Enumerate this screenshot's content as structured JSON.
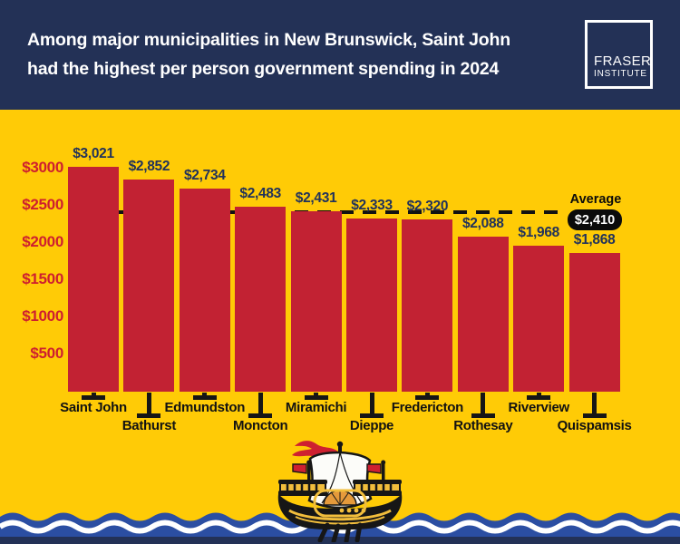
{
  "header": {
    "title_line1": "Among major municipalities in New Brunswick, Saint John",
    "title_line2": "had the highest per person government spending in 2024",
    "logo": {
      "line1": "FRASER",
      "line2": "INSTITUTE"
    }
  },
  "chart_data": {
    "type": "bar",
    "title": "Among major municipalities in New Brunswick, Saint John had the highest per person government spending in 2024",
    "categories": [
      "Saint John",
      "Bathurst",
      "Edmundston",
      "Moncton",
      "Miramichi",
      "Dieppe",
      "Fredericton",
      "Rothesay",
      "Riverview",
      "Quispamsis"
    ],
    "values": [
      3021,
      2852,
      2734,
      2483,
      2431,
      2333,
      2320,
      2088,
      1968,
      1868
    ],
    "value_labels": [
      "$3,021",
      "$2,852",
      "$2,734",
      "$2,483",
      "$2,431",
      "$2,333",
      "$2,320",
      "$2,088",
      "$1,968",
      "$1,868"
    ],
    "y_ticks": [
      {
        "label": "$3000",
        "value": 3000
      },
      {
        "label": "$2500",
        "value": 2500
      },
      {
        "label": "$2000",
        "value": 2000
      },
      {
        "label": "$1500",
        "value": 1500
      },
      {
        "label": "$1000",
        "value": 1000
      },
      {
        "label": "$500",
        "value": 500
      }
    ],
    "ylim": [
      0,
      3200
    ],
    "grid": false,
    "legend_position": "none",
    "average": {
      "label": "Average",
      "value": 2410,
      "value_label": "$2,410"
    }
  },
  "colors": {
    "header_navy": "#233156",
    "background_yellow": "#FFCB06",
    "bar_red": "#C22233",
    "axis_label_red": "#CE1F2F",
    "value_label_navy": "#21325B",
    "category_label_black": "#121212",
    "average_line_black": "#121212",
    "average_pill_bg": "#0B0B0B",
    "average_pill_text": "#FFFFFF",
    "wave_blue": "#2B4EA2",
    "wave_white": "#FFFFFF",
    "bottom_navy": "#233156",
    "ship_gold": "#F2BE3C",
    "ship_red": "#CE2030",
    "sail_white": "#FCFCF9"
  },
  "icons": {
    "ship": "new-brunswick-lymphad-ship"
  }
}
